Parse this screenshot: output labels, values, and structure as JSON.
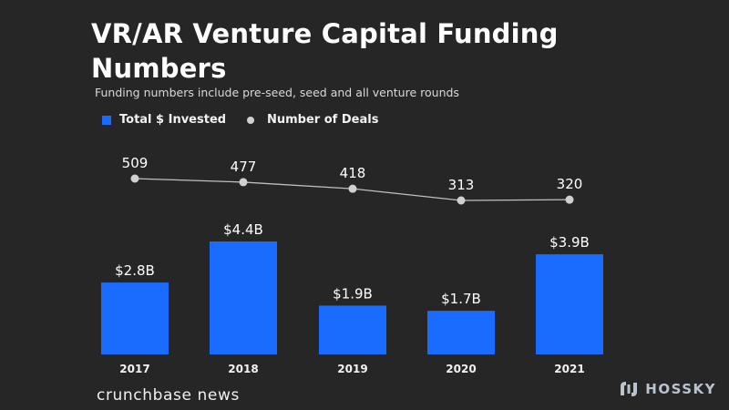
{
  "header": {
    "title_line1": "VR/AR Venture Capital Funding",
    "title_line2": "Numbers",
    "subtitle": "Funding numbers include pre-seed, seed and all venture rounds"
  },
  "legend": {
    "invested": "Total $ Invested",
    "deals": "Number of Deals"
  },
  "chart_data": {
    "type": "bar",
    "title": "VR/AR Venture Capital Funding Numbers",
    "subtitle": "Funding numbers include pre-seed, seed and all venture rounds",
    "categories": [
      "2017",
      "2018",
      "2019",
      "2020",
      "2021"
    ],
    "series": [
      {
        "name": "Total $ Invested",
        "type": "bar",
        "unit": "billion USD",
        "values": [
          2.8,
          4.4,
          1.9,
          1.7,
          3.9
        ],
        "labels": [
          "$2.8B",
          "$4.4B",
          "$1.9B",
          "$1.7B",
          "$3.9B"
        ]
      },
      {
        "name": "Number of Deals",
        "type": "line",
        "values": [
          509,
          477,
          418,
          313,
          320
        ],
        "labels": [
          "509",
          "477",
          "418",
          "313",
          "320"
        ]
      }
    ],
    "bar_ylim": [
      0,
      5
    ],
    "line_ylim": [
      0,
      600
    ],
    "grid": false,
    "legend_position": "top-left"
  },
  "colors": {
    "background": "#262626",
    "bar": "#1a6bff",
    "line": "#bfbfbf",
    "point": "#d0d0d0"
  },
  "footer": {
    "source": "crunchbase news"
  },
  "watermark": {
    "text": "HOSSKY",
    "icon": "hossky-logo-icon"
  }
}
